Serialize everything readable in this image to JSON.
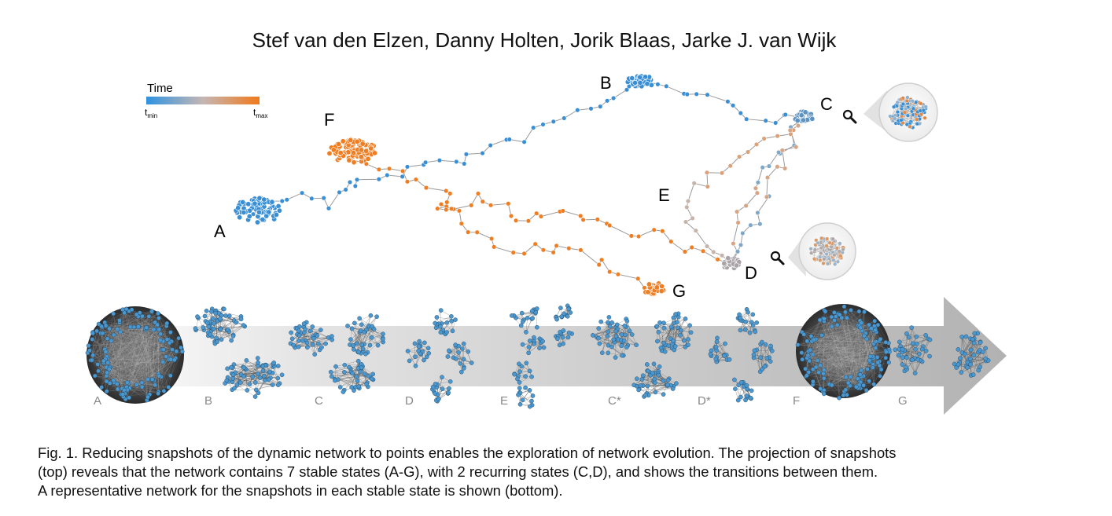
{
  "authors": "Stef van den Elzen, Danny Holten, Jorik Blaas, Jarke J. van Wijk",
  "legend": {
    "title": "Time",
    "min_label": "t",
    "min_sub": "min",
    "max_label": "t",
    "max_sub": "max"
  },
  "colors": {
    "early": "#3a8fd4",
    "late": "#ef7d22",
    "mid": "#b8a39a",
    "node_bottom": "#4a98cf"
  },
  "projection_labels": [
    "A",
    "B",
    "C",
    "D",
    "E",
    "F",
    "G"
  ],
  "state_labels": [
    "A",
    "B",
    "C",
    "D",
    "E",
    "C*",
    "D*",
    "F",
    "G"
  ],
  "icons": [
    "magnifier-icon",
    "magnifier-icon"
  ],
  "caption": [
    "Fig. 1. Reducing snapshots of the dynamic network to points enables the exploration of network evolution. The projection of snapshots",
    "(top) reveals that the network contains 7 stable states (A-G), with 2 recurring states (C,D), and shows the transitions between them.",
    "A representative network for the snapshots in each stable state is shown (bottom)."
  ]
}
